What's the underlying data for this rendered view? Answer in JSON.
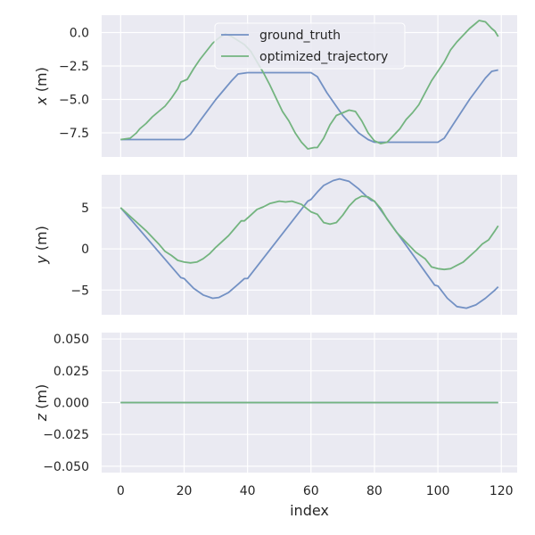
{
  "chart_data": {
    "type": "line",
    "xlabel": "index",
    "x_ticks": [
      0,
      20,
      40,
      60,
      80,
      100,
      120
    ],
    "xlim": [
      -6,
      125
    ],
    "legend": {
      "placement": "upper-center",
      "entries": [
        "ground_truth",
        "optimized_trajectory"
      ]
    },
    "colors": {
      "ground_truth": "#7391c4",
      "optimized_trajectory": "#73b47f"
    },
    "grid": true,
    "panels": [
      {
        "ylabel_var": "x",
        "ylabel_unit": " (m)",
        "ylim": [
          -9.3,
          1.3
        ],
        "y_ticks": [
          0.0,
          -2.5,
          -5.0,
          -7.5
        ],
        "y_tick_labels": [
          "0.0",
          "−2.5",
          "−5.0",
          "−7.5"
        ],
        "series": [
          {
            "name": "ground_truth",
            "points": [
              [
                0,
                -8
              ],
              [
                20,
                -8
              ],
              [
                22,
                -7.6
              ],
              [
                25,
                -6.6
              ],
              [
                30,
                -5
              ],
              [
                35,
                -3.6
              ],
              [
                37,
                -3.1
              ],
              [
                40,
                -3
              ],
              [
                60,
                -3
              ],
              [
                62,
                -3.3
              ],
              [
                65,
                -4.5
              ],
              [
                70,
                -6.2
              ],
              [
                75,
                -7.5
              ],
              [
                78,
                -8
              ],
              [
                80,
                -8.2
              ],
              [
                100,
                -8.2
              ],
              [
                102,
                -7.9
              ],
              [
                105,
                -6.8
              ],
              [
                110,
                -5
              ],
              [
                115,
                -3.4
              ],
              [
                117,
                -2.9
              ],
              [
                119,
                -2.8
              ]
            ]
          },
          {
            "name": "optimized_trajectory",
            "points": [
              [
                0,
                -8
              ],
              [
                3,
                -7.9
              ],
              [
                5,
                -7.5
              ],
              [
                6,
                -7.2
              ],
              [
                8,
                -6.8
              ],
              [
                10,
                -6.3
              ],
              [
                12,
                -5.9
              ],
              [
                14,
                -5.5
              ],
              [
                16,
                -4.9
              ],
              [
                18,
                -4.2
              ],
              [
                19,
                -3.7
              ],
              [
                20,
                -3.6
              ],
              [
                21,
                -3.5
              ],
              [
                23,
                -2.7
              ],
              [
                25,
                -2
              ],
              [
                27,
                -1.4
              ],
              [
                29,
                -0.8
              ],
              [
                31,
                -0.4
              ],
              [
                33,
                -0.1
              ],
              [
                35,
                -0.3
              ],
              [
                37,
                -0.6
              ],
              [
                39,
                -0.9
              ],
              [
                41,
                -1.4
              ],
              [
                43,
                -2.2
              ],
              [
                45,
                -3
              ],
              [
                47,
                -3.9
              ],
              [
                49,
                -4.9
              ],
              [
                51,
                -5.9
              ],
              [
                53,
                -6.6
              ],
              [
                55,
                -7.5
              ],
              [
                57,
                -8.2
              ],
              [
                59,
                -8.7
              ],
              [
                61,
                -8.6
              ],
              [
                62,
                -8.6
              ],
              [
                64,
                -7.9
              ],
              [
                66,
                -6.9
              ],
              [
                68,
                -6.2
              ],
              [
                70,
                -6
              ],
              [
                72,
                -5.8
              ],
              [
                74,
                -5.9
              ],
              [
                76,
                -6.6
              ],
              [
                78,
                -7.5
              ],
              [
                80,
                -8.1
              ],
              [
                82,
                -8.3
              ],
              [
                84,
                -8.2
              ],
              [
                86,
                -7.7
              ],
              [
                88,
                -7.2
              ],
              [
                90,
                -6.5
              ],
              [
                92,
                -6
              ],
              [
                94,
                -5.4
              ],
              [
                96,
                -4.5
              ],
              [
                98,
                -3.6
              ],
              [
                100,
                -2.9
              ],
              [
                102,
                -2.2
              ],
              [
                104,
                -1.3
              ],
              [
                106,
                -0.7
              ],
              [
                108,
                -0.2
              ],
              [
                110,
                0.3
              ],
              [
                112,
                0.7
              ],
              [
                113,
                0.9
              ],
              [
                115,
                0.8
              ],
              [
                117,
                0.3
              ],
              [
                118,
                0.1
              ],
              [
                119,
                -0.3
              ]
            ]
          }
        ]
      },
      {
        "ylabel_var": "y",
        "ylabel_unit": " (m)",
        "ylim": [
          -8,
          9
        ],
        "y_ticks": [
          5,
          0,
          -5
        ],
        "y_tick_labels": [
          "5",
          "0",
          "−5"
        ],
        "series": [
          {
            "name": "ground_truth",
            "points": [
              [
                0,
                5
              ],
              [
                19,
                -3.5
              ],
              [
                20,
                -3.6
              ],
              [
                23,
                -4.8
              ],
              [
                26,
                -5.6
              ],
              [
                29,
                -6
              ],
              [
                31,
                -5.9
              ],
              [
                34,
                -5.3
              ],
              [
                37,
                -4.3
              ],
              [
                39,
                -3.6
              ],
              [
                40,
                -3.6
              ],
              [
                59,
                5.8
              ],
              [
                60,
                6
              ],
              [
                62,
                6.9
              ],
              [
                64,
                7.7
              ],
              [
                67,
                8.3
              ],
              [
                69,
                8.5
              ],
              [
                72,
                8.2
              ],
              [
                75,
                7.3
              ],
              [
                78,
                6.2
              ],
              [
                79,
                5.9
              ],
              [
                80,
                5.8
              ],
              [
                99,
                -4.4
              ],
              [
                100,
                -4.5
              ],
              [
                103,
                -6
              ],
              [
                106,
                -7
              ],
              [
                109,
                -7.2
              ],
              [
                112,
                -6.8
              ],
              [
                115,
                -6
              ],
              [
                118,
                -5
              ],
              [
                119,
                -4.6
              ]
            ]
          },
          {
            "name": "optimized_trajectory",
            "points": [
              [
                0,
                5
              ],
              [
                4,
                3.6
              ],
              [
                8,
                2.2
              ],
              [
                12,
                0.6
              ],
              [
                14,
                -0.3
              ],
              [
                16,
                -0.8
              ],
              [
                18,
                -1.4
              ],
              [
                20,
                -1.6
              ],
              [
                22,
                -1.7
              ],
              [
                24,
                -1.6
              ],
              [
                26,
                -1.2
              ],
              [
                28,
                -0.6
              ],
              [
                30,
                0.2
              ],
              [
                32,
                0.9
              ],
              [
                34,
                1.6
              ],
              [
                36,
                2.5
              ],
              [
                38,
                3.4
              ],
              [
                39,
                3.4
              ],
              [
                41,
                4.1
              ],
              [
                43,
                4.8
              ],
              [
                45,
                5.1
              ],
              [
                47,
                5.5
              ],
              [
                50,
                5.8
              ],
              [
                52,
                5.7
              ],
              [
                54,
                5.8
              ],
              [
                57,
                5.4
              ],
              [
                60,
                4.5
              ],
              [
                62,
                4.2
              ],
              [
                64,
                3.2
              ],
              [
                66,
                3
              ],
              [
                68,
                3.2
              ],
              [
                70,
                4.1
              ],
              [
                72,
                5.2
              ],
              [
                74,
                6
              ],
              [
                76,
                6.4
              ],
              [
                78,
                6.3
              ],
              [
                80,
                5.8
              ],
              [
                82,
                4.9
              ],
              [
                84,
                3.6
              ],
              [
                87,
                2
              ],
              [
                90,
                0.8
              ],
              [
                93,
                -0.4
              ],
              [
                96,
                -1.2
              ],
              [
                98,
                -2.2
              ],
              [
                100,
                -2.4
              ],
              [
                102,
                -2.5
              ],
              [
                104,
                -2.4
              ],
              [
                106,
                -2
              ],
              [
                108,
                -1.6
              ],
              [
                110,
                -0.9
              ],
              [
                112,
                -0.2
              ],
              [
                114,
                0.6
              ],
              [
                116,
                1.1
              ],
              [
                118,
                2.2
              ],
              [
                119,
                2.8
              ]
            ]
          }
        ]
      },
      {
        "ylabel_var": "z",
        "ylabel_unit": " (m)",
        "ylim": [
          -0.055,
          0.055
        ],
        "y_ticks": [
          0.05,
          0.025,
          0.0,
          -0.025,
          -0.05
        ],
        "y_tick_labels": [
          "0.050",
          "0.025",
          "0.000",
          "−0.025",
          "−0.050"
        ],
        "series": [
          {
            "name": "ground_truth",
            "points": [
              [
                0,
                0
              ],
              [
                119,
                0
              ]
            ]
          },
          {
            "name": "optimized_trajectory",
            "points": [
              [
                0,
                0
              ],
              [
                119,
                0
              ]
            ]
          }
        ]
      }
    ]
  }
}
